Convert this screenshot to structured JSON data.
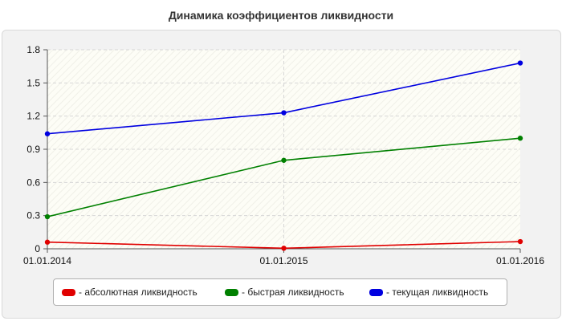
{
  "chart_data": {
    "type": "line",
    "title": "Динамика коэффициентов ликвидности",
    "x": [
      "01.01.2014",
      "01.01.2015",
      "01.01.2016"
    ],
    "ylim": [
      0,
      1.8
    ],
    "yticks": [
      "0",
      "0.3",
      "0.6",
      "0.9",
      "1.2",
      "1.5",
      "1.8"
    ],
    "grid": true,
    "legend_position": "bottom",
    "series": [
      {
        "name": "- абсолютная ликвидность",
        "color": "#e00000",
        "values": [
          0.06,
          0.005,
          0.065
        ]
      },
      {
        "name": "- быстрая ликвидность",
        "color": "#008000",
        "values": [
          0.29,
          0.8,
          1.0
        ]
      },
      {
        "name": "- текущая ликвидность",
        "color": "#0000e0",
        "values": [
          1.04,
          1.23,
          1.68
        ]
      }
    ]
  }
}
